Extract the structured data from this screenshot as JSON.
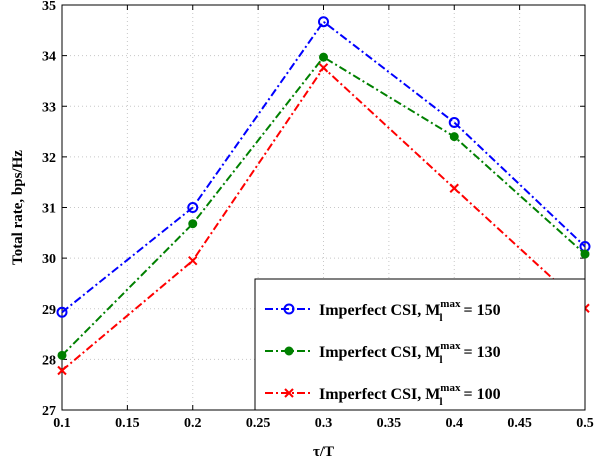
{
  "chart_data": {
    "type": "line",
    "xlabel": "τ/T",
    "ylabel": "Total rate, bps/Hz",
    "xlim": [
      0.1,
      0.5
    ],
    "ylim": [
      27,
      35
    ],
    "x_ticks": [
      "0.1",
      "0.15",
      "0.2",
      "0.25",
      "0.3",
      "0.35",
      "0.4",
      "0.45",
      "0.5"
    ],
    "y_ticks": [
      "27",
      "28",
      "29",
      "30",
      "31",
      "32",
      "33",
      "34",
      "35"
    ],
    "grid": true,
    "legend_position": "bottom-right",
    "x": [
      0.1,
      0.2,
      0.3,
      0.4,
      0.5
    ],
    "series": [
      {
        "name_prefix": "Imperfect CSI, M",
        "name_sup": "max",
        "name_sub": "l",
        "name_suffix": " = 150",
        "color": "#0000ff",
        "marker": "circle",
        "values": [
          28.93,
          31.0,
          34.67,
          32.68,
          30.23
        ]
      },
      {
        "name_prefix": "Imperfect CSI, M",
        "name_sup": "max",
        "name_sub": "l",
        "name_suffix": " = 130",
        "color": "#008000",
        "marker": "dot",
        "values": [
          28.08,
          30.68,
          33.97,
          32.4,
          30.08
        ]
      },
      {
        "name_prefix": "Imperfect CSI, M",
        "name_sup": "max",
        "name_sub": "l",
        "name_suffix": " = 100",
        "color": "#ff0000",
        "marker": "x",
        "values": [
          27.78,
          29.95,
          33.76,
          31.38,
          29.01
        ]
      }
    ]
  }
}
